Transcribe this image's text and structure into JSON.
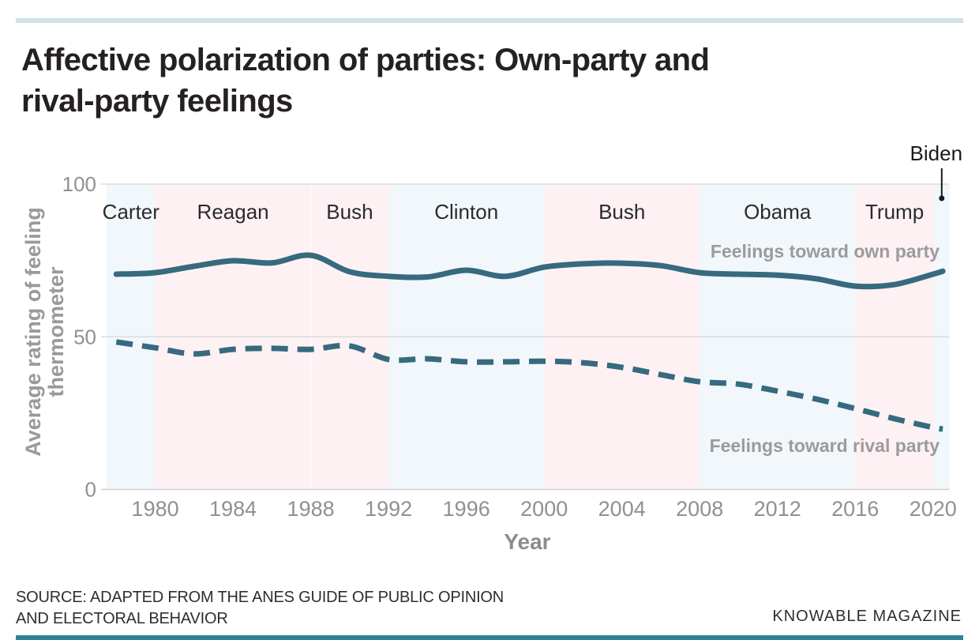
{
  "header": {
    "title_line1": "Affective polarization of parties: Own-party and",
    "title_line2": "rival-party feelings"
  },
  "chart_data": {
    "type": "line",
    "title": "Affective polarization of parties: Own-party and rival-party feelings",
    "xlabel": "Year",
    "ylabel": "Average rating of feeling thermometer",
    "ylabel_lines": [
      "Average rating of feeling",
      "thermometer"
    ],
    "xlim": [
      1977.5,
      2020.85
    ],
    "ylim": [
      0,
      100
    ],
    "yticks": [
      0,
      50,
      100
    ],
    "xticks": [
      1980,
      1984,
      1988,
      1992,
      1996,
      2000,
      2004,
      2008,
      2012,
      2016,
      2020
    ],
    "grid": true,
    "legend_position": "inline-right",
    "x": [
      1978,
      1980,
      1982,
      1984,
      1986,
      1988,
      1990,
      1992,
      1994,
      1996,
      1998,
      2000,
      2002,
      2004,
      2006,
      2008,
      2010,
      2012,
      2014,
      2016,
      2018,
      2020,
      2020.5
    ],
    "series": [
      {
        "name": "Feelings toward own party",
        "style": "solid",
        "values": [
          70.5,
          71.0,
          73.1,
          74.9,
          74.2,
          76.7,
          71.3,
          69.8,
          69.6,
          71.8,
          69.8,
          72.8,
          73.9,
          74.1,
          73.3,
          71.0,
          70.5,
          70.2,
          69.0,
          66.6,
          67.1,
          70.5,
          71.5
        ]
      },
      {
        "name": "Feelings toward rival party",
        "style": "dashed",
        "values": [
          48.3,
          46.4,
          44.4,
          45.9,
          46.2,
          45.9,
          47.0,
          42.6,
          42.8,
          41.8,
          41.8,
          42.0,
          41.5,
          40.0,
          37.6,
          35.3,
          34.5,
          32.2,
          29.6,
          26.5,
          23.2,
          20.3,
          19.8
        ]
      }
    ],
    "eras": [
      {
        "name": "Carter",
        "label": "Carter",
        "party": "D",
        "start": 1977.5,
        "end": 1980
      },
      {
        "name": "Reagan",
        "label": "Reagan",
        "party": "R",
        "start": 1980,
        "end": 1988
      },
      {
        "name": "Bush",
        "label": "Bush",
        "party": "R",
        "start": 1988,
        "end": 1992
      },
      {
        "name": "Clinton",
        "label": "Clinton",
        "party": "D",
        "start": 1992,
        "end": 2000
      },
      {
        "name": "Bush-2",
        "label": "Bush",
        "party": "R",
        "start": 2000,
        "end": 2008
      },
      {
        "name": "Obama",
        "label": "Obama",
        "party": "D",
        "start": 2008,
        "end": 2016
      },
      {
        "name": "Trump",
        "label": "Trump",
        "party": "R",
        "start": 2016,
        "end": 2020.05
      },
      {
        "name": "Biden",
        "label": "",
        "party": "D",
        "start": 2020.05,
        "end": 2020.85
      }
    ],
    "annotation": {
      "label": "Biden",
      "year": 2020.45
    },
    "colors": {
      "line": "#366a7e",
      "dem_band": "#f1f7fb",
      "rep_band": "#fdf1f3",
      "grid": "#dcdcdc",
      "zero_line": "#cfcfcf",
      "axis_text": "#909090",
      "era_text": "#2b2b2b",
      "legend_text": "#9b9b9b",
      "annotation": "#1a1a1a",
      "top_rule": "#cfe1e4",
      "bottom_rule": "#2e8496"
    }
  },
  "footer": {
    "source_line1": "SOURCE: ADAPTED FROM THE ANES GUIDE OF PUBLIC OPINION",
    "source_line2": "AND ELECTORAL BEHAVIOR",
    "credit": "KNOWABLE MAGAZINE"
  }
}
